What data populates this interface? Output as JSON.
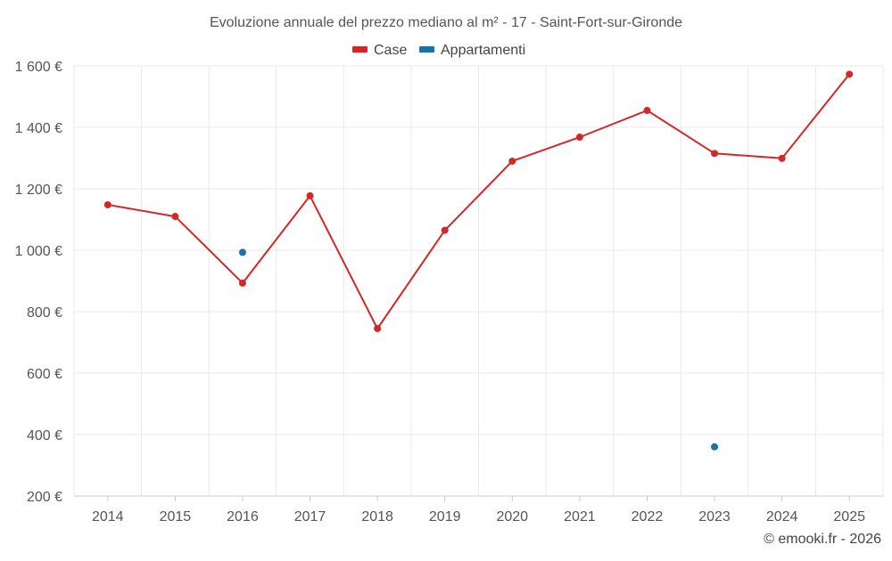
{
  "chart_data": {
    "type": "line",
    "title": "Evoluzione annuale del prezzo mediano al m² - 17 - Saint-Fort-sur-Gironde",
    "categories": [
      "2014",
      "2015",
      "2016",
      "2017",
      "2018",
      "2019",
      "2020",
      "2021",
      "2022",
      "2023",
      "2024",
      "2025"
    ],
    "ylim": [
      200,
      1600
    ],
    "yticks": [
      200,
      400,
      600,
      800,
      1000,
      1200,
      1400,
      1600
    ],
    "ytick_labels": [
      "200 €",
      "400 €",
      "600 €",
      "800 €",
      "1 000 €",
      "1 200 €",
      "1 400 €",
      "1 600 €"
    ],
    "grid": true,
    "legend_position": "top-center",
    "series": [
      {
        "name": "Case",
        "color": "#d62728",
        "style": "line+markers",
        "values": [
          1148,
          1110,
          893,
          1177,
          745,
          1065,
          1290,
          1368,
          1455,
          1315,
          1299,
          1573
        ]
      },
      {
        "name": "Appartamenti",
        "color": "#1f6fa8",
        "style": "markers",
        "values": [
          null,
          null,
          993,
          null,
          null,
          null,
          null,
          null,
          null,
          360,
          null,
          null
        ]
      }
    ]
  },
  "credit": "© emooki.fr - 2026"
}
